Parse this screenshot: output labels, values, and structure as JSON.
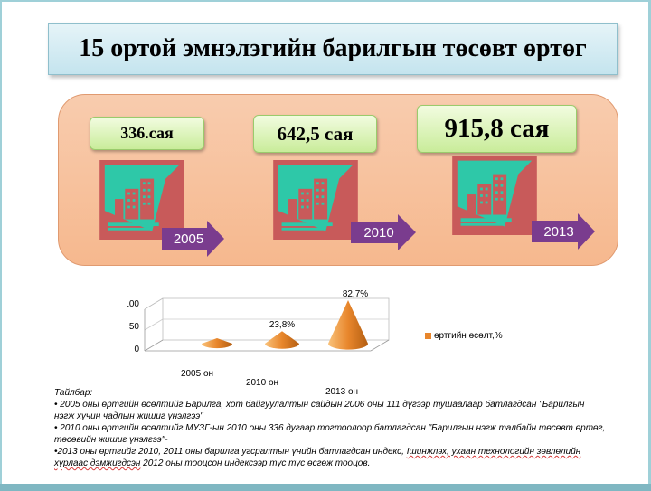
{
  "title": "15 ортой эмнэлэгийн барилгын төсөвт өртөг",
  "amounts": [
    "336.сая",
    "642,5 сая",
    "915,8 сая"
  ],
  "years": [
    "2005",
    "2010",
    "2013"
  ],
  "colors": {
    "panel": "#f6b88e",
    "amount_box": "#c9ec9a",
    "building_bg": "#c85a5a",
    "building_teal": "#2ec8a8",
    "arrow": "#7a3c8e",
    "cone": "#e8862c"
  },
  "icons": [
    "building-icon",
    "arrow-right-icon"
  ],
  "chart_data": {
    "type": "bar",
    "style": "3d-cone",
    "categories": [
      "2005 он",
      "2010 он",
      "2013 он"
    ],
    "series": [
      {
        "name": "өртгийн өсөлт,%",
        "values": [
          0,
          23.8,
          82.7
        ]
      }
    ],
    "data_labels": [
      "",
      "23,8%",
      "82,7%"
    ],
    "yticks": [
      "0",
      "50",
      "100"
    ],
    "ylim": [
      0,
      100
    ],
    "legend": "right",
    "grid": true
  },
  "notes": {
    "heading": "Тайлбар:",
    "line1": "•  2005 оны өртгийн  өсөлтийг  Барилга, хот байгуулалтын сайдын 2006 оны 111 дүгээр тушаалаар батлагдсан \"Барилгын нэгж хүчин чадлын жишиг үнэлгээ\"",
    "line2": "•  2010  оны өртгийн  өсөлтийг МУЗГ-ын 2010 оны 336 дугаар тогтоолоор батлагдсан \"Барилгын нэгж талбайн төсөвт өртөг, төсөвийн жишиг үнэлгээ\"-",
    "line3a": "•2013 оны өртгийг 2010, 2011 оны барилга угсралтын үнийн батлагдсан индекс, ",
    "line3b": "Ішинжлэх, ухаан технологийн зөвлөлийн хурлаас дэмжигдсэн",
    "line3c": " 2012 оны  тооцсон индексээр тус тус өсгөж  тооцов."
  }
}
